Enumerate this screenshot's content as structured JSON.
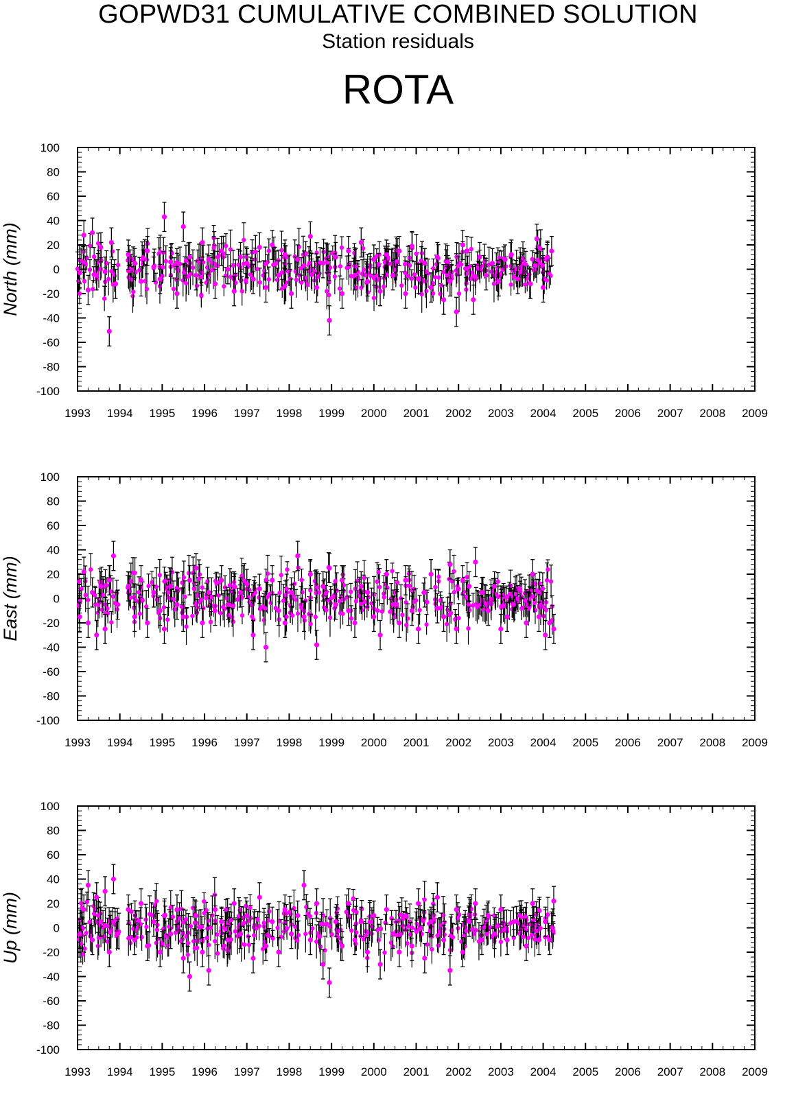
{
  "header": {
    "title": "GOPWD31 CUMULATIVE COMBINED SOLUTION",
    "subtitle": "Station residuals",
    "station": "ROTA"
  },
  "colors": {
    "point": "#ff00ff",
    "errorbar": "#000000",
    "axis": "#000000"
  },
  "chart_data": [
    {
      "type": "scatter",
      "ylabel": "North (mm)",
      "xlim": [
        1993,
        2009
      ],
      "ylim": [
        -100,
        100
      ],
      "xticks": [
        "1993",
        "1994",
        "1995",
        "1996",
        "1997",
        "1998",
        "1999",
        "2000",
        "2001",
        "2002",
        "2003",
        "2004",
        "2005",
        "2006",
        "2007",
        "2008",
        "2009"
      ],
      "yticks": [
        "100",
        "80",
        "60",
        "40",
        "20",
        "0",
        "-20",
        "-40",
        "-60",
        "-80",
        "-100"
      ],
      "error_bars": true,
      "x": [
        1993.05,
        1993.15,
        1993.25,
        1993.35,
        1993.45,
        1993.55,
        1993.65,
        1993.75,
        1993.8,
        1993.9,
        1994.2,
        1994.35,
        1994.5,
        1994.65,
        1994.8,
        1994.95,
        1995.05,
        1995.2,
        1995.35,
        1995.5,
        1995.65,
        1995.8,
        1995.95,
        1996.1,
        1996.25,
        1996.4,
        1996.55,
        1996.7,
        1996.85,
        1997.0,
        1997.15,
        1997.3,
        1997.45,
        1997.6,
        1997.75,
        1997.9,
        1998.05,
        1998.2,
        1998.35,
        1998.5,
        1998.65,
        1998.8,
        1998.95,
        1999.1,
        1999.25,
        1999.4,
        1999.55,
        1999.7,
        1999.85,
        2000.0,
        2000.15,
        2000.3,
        2000.45,
        2000.6,
        2000.75,
        2000.9,
        2001.05,
        2001.2,
        2001.35,
        2001.5,
        2001.65,
        2001.8,
        2001.95,
        2002.1,
        2002.2,
        2002.35,
        2002.5,
        2002.65,
        2002.8,
        2002.95,
        2003.1,
        2003.25,
        2003.4,
        2003.55,
        2003.7,
        2003.85,
        2004.0,
        2004.1,
        2004.2
      ],
      "y": [
        -3,
        28,
        -17,
        30,
        -5,
        18,
        -2,
        -51,
        22,
        -12,
        12,
        5,
        -10,
        15,
        2,
        -8,
        43,
        6,
        -20,
        35,
        10,
        -5,
        22,
        8,
        -12,
        15,
        0,
        -18,
        10,
        5,
        -8,
        18,
        -15,
        20,
        -5,
        12,
        -20,
        8,
        3,
        27,
        -15,
        5,
        -42,
        10,
        -20,
        15,
        -5,
        22,
        -10,
        8,
        -18,
        12,
        -5,
        15,
        -20,
        19,
        -8,
        5,
        -15,
        10,
        -25,
        -10,
        -35,
        20,
        15,
        -25,
        10,
        -5,
        5,
        -10,
        8,
        12,
        -8,
        5,
        -12,
        25,
        -15,
        10,
        15
      ]
    },
    {
      "type": "scatter",
      "ylabel": "East (mm)",
      "xlim": [
        1993,
        2009
      ],
      "ylim": [
        -100,
        100
      ],
      "xticks": [
        "1993",
        "1994",
        "1995",
        "1996",
        "1997",
        "1998",
        "1999",
        "2000",
        "2001",
        "2002",
        "2003",
        "2004",
        "2005",
        "2006",
        "2007",
        "2008",
        "2009"
      ],
      "yticks": [
        "100",
        "80",
        "60",
        "40",
        "20",
        "0",
        "-20",
        "-40",
        "-60",
        "-80",
        "-100"
      ],
      "error_bars": true,
      "x": [
        1993.05,
        1993.15,
        1993.25,
        1993.35,
        1993.45,
        1993.55,
        1993.65,
        1993.75,
        1993.85,
        1993.95,
        1994.2,
        1994.35,
        1994.5,
        1994.65,
        1994.8,
        1994.95,
        1995.05,
        1995.2,
        1995.35,
        1995.5,
        1995.65,
        1995.8,
        1995.95,
        1996.1,
        1996.25,
        1996.4,
        1996.55,
        1996.7,
        1996.85,
        1997.0,
        1997.15,
        1997.3,
        1997.45,
        1997.6,
        1997.75,
        1997.9,
        1998.05,
        1998.2,
        1998.35,
        1998.5,
        1998.65,
        1998.8,
        1998.95,
        1999.1,
        1999.25,
        1999.4,
        1999.55,
        1999.7,
        1999.85,
        2000.0,
        2000.15,
        2000.3,
        2000.45,
        2000.6,
        2000.75,
        2000.9,
        2001.05,
        2001.2,
        2001.35,
        2001.5,
        2001.65,
        2001.8,
        2001.95,
        2002.1,
        2002.25,
        2002.4,
        2002.55,
        2002.7,
        2002.85,
        2003.0,
        2003.15,
        2003.3,
        2003.45,
        2003.6,
        2003.75,
        2003.9,
        2004.05,
        2004.15,
        2004.25
      ],
      "y": [
        -15,
        22,
        -20,
        5,
        -30,
        10,
        -25,
        15,
        35,
        -5,
        10,
        -15,
        15,
        -20,
        5,
        -10,
        -25,
        10,
        -5,
        -15,
        15,
        25,
        -20,
        5,
        -10,
        15,
        -5,
        10,
        5,
        12,
        -30,
        8,
        -40,
        15,
        -10,
        -20,
        5,
        35,
        -15,
        20,
        -38,
        10,
        25,
        -5,
        15,
        -10,
        -20,
        10,
        5,
        -15,
        -30,
        20,
        -5,
        -20,
        15,
        -10,
        -25,
        5,
        20,
        -8,
        -15,
        28,
        -25,
        15,
        10,
        30,
        5,
        -10,
        10,
        -25,
        -15,
        -5,
        8,
        -20,
        20,
        -15,
        -30,
        -20,
        -25
      ]
    },
    {
      "type": "scatter",
      "ylabel": "Up (mm)",
      "xlim": [
        1993,
        2009
      ],
      "ylim": [
        -100,
        100
      ],
      "xticks": [
        "1993",
        "1994",
        "1995",
        "1996",
        "1997",
        "1998",
        "1999",
        "2000",
        "2001",
        "2002",
        "2003",
        "2004",
        "2005",
        "2006",
        "2007",
        "2008",
        "2009"
      ],
      "yticks": [
        "100",
        "80",
        "60",
        "40",
        "20",
        "0",
        "-20",
        "-40",
        "-60",
        "-80",
        "-100"
      ],
      "error_bars": true,
      "x": [
        1993.05,
        1993.15,
        1993.25,
        1993.35,
        1993.45,
        1993.55,
        1993.65,
        1993.75,
        1993.85,
        1993.95,
        1994.2,
        1994.35,
        1994.5,
        1994.65,
        1994.8,
        1994.95,
        1995.05,
        1995.2,
        1995.35,
        1995.5,
        1995.65,
        1995.8,
        1995.95,
        1996.1,
        1996.25,
        1996.4,
        1996.55,
        1996.7,
        1996.85,
        1997.0,
        1997.15,
        1997.3,
        1997.45,
        1997.6,
        1997.75,
        1997.9,
        1998.05,
        1998.2,
        1998.35,
        1998.5,
        1998.65,
        1998.8,
        1998.95,
        1999.1,
        1999.25,
        1999.4,
        1999.55,
        1999.7,
        1999.85,
        2000.0,
        2000.15,
        2000.3,
        2000.45,
        2000.6,
        2000.75,
        2000.9,
        2001.05,
        2001.2,
        2001.35,
        2001.5,
        2001.65,
        2001.8,
        2001.95,
        2002.1,
        2002.25,
        2002.4,
        2002.55,
        2002.7,
        2002.85,
        2003.0,
        2003.15,
        2003.3,
        2003.45,
        2003.6,
        2003.75,
        2003.9,
        2004.05,
        2004.15,
        2004.25
      ],
      "y": [
        -5,
        15,
        35,
        -10,
        25,
        5,
        30,
        -20,
        40,
        -5,
        15,
        -10,
        20,
        -15,
        5,
        -20,
        10,
        -5,
        15,
        -25,
        -40,
        10,
        -20,
        -35,
        15,
        5,
        -10,
        20,
        -5,
        10,
        -25,
        25,
        -15,
        5,
        -20,
        15,
        -5,
        10,
        35,
        -10,
        20,
        -30,
        -45,
        5,
        -15,
        20,
        -10,
        5,
        -20,
        10,
        -30,
        15,
        -5,
        -20,
        10,
        -15,
        20,
        -25,
        5,
        25,
        -10,
        -35,
        15,
        -20,
        5,
        20,
        -10,
        10,
        -5,
        15,
        -10,
        5,
        10,
        -15,
        20,
        -10,
        5,
        -10,
        22
      ]
    }
  ]
}
